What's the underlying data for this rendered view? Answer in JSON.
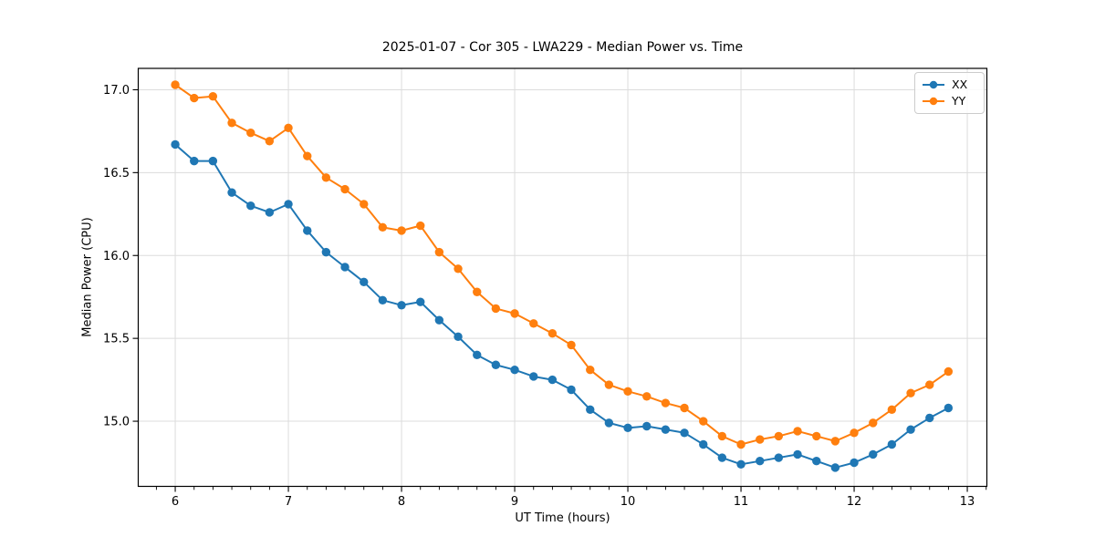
{
  "chart_data": {
    "type": "line",
    "title": "2025-01-07 - Cor 305 - LWA229 - Median Power vs. Time",
    "xlabel": "UT Time (hours)",
    "ylabel": "Median Power (CPU)",
    "x": [
      6.0,
      6.167,
      6.333,
      6.5,
      6.667,
      6.833,
      7.0,
      7.167,
      7.333,
      7.5,
      7.667,
      7.833,
      8.0,
      8.167,
      8.333,
      8.5,
      8.667,
      8.833,
      9.0,
      9.167,
      9.333,
      9.5,
      9.667,
      9.833,
      10.0,
      10.167,
      10.333,
      10.5,
      10.667,
      10.833,
      11.0,
      11.167,
      11.333,
      11.5,
      11.667,
      11.833,
      12.0,
      12.167,
      12.333,
      12.5,
      12.667,
      12.833
    ],
    "series": [
      {
        "name": "XX",
        "color": "#1f77b4",
        "values": [
          16.67,
          16.57,
          16.57,
          16.38,
          16.3,
          16.26,
          16.31,
          16.15,
          16.02,
          15.93,
          15.84,
          15.73,
          15.7,
          15.72,
          15.61,
          15.51,
          15.4,
          15.34,
          15.31,
          15.27,
          15.25,
          15.19,
          15.07,
          14.99,
          14.96,
          14.97,
          14.95,
          14.93,
          14.86,
          14.78,
          14.74,
          14.76,
          14.78,
          14.8,
          14.76,
          14.72,
          14.75,
          14.8,
          14.86,
          14.95,
          15.02,
          15.08
        ]
      },
      {
        "name": "YY",
        "color": "#ff7f0e",
        "values": [
          17.03,
          16.95,
          16.96,
          16.8,
          16.74,
          16.69,
          16.77,
          16.6,
          16.47,
          16.4,
          16.31,
          16.17,
          16.15,
          16.18,
          16.02,
          15.92,
          15.78,
          15.68,
          15.65,
          15.59,
          15.53,
          15.46,
          15.31,
          15.22,
          15.18,
          15.15,
          15.11,
          15.08,
          15.0,
          14.91,
          14.86,
          14.89,
          14.91,
          14.94,
          14.91,
          14.88,
          14.93,
          14.99,
          15.07,
          15.17,
          15.22,
          15.3
        ]
      }
    ],
    "xticks": [
      6,
      7,
      8,
      9,
      10,
      11,
      12,
      13
    ],
    "xtick_labels": [
      "6",
      "7",
      "8",
      "9",
      "10",
      "11",
      "12",
      "13"
    ],
    "yticks": [
      15.0,
      15.5,
      16.0,
      16.5,
      17.0
    ],
    "ytick_labels": [
      "15.0",
      "15.5",
      "16.0",
      "16.5",
      "17.0"
    ],
    "xlim": [
      5.673,
      13.173
    ],
    "ylim": [
      14.607,
      17.129
    ],
    "x_minor_interval": 0.16667,
    "grid": true,
    "grid_color": "#dcdcdc",
    "legend_position": "upper right",
    "marker": "circle"
  }
}
